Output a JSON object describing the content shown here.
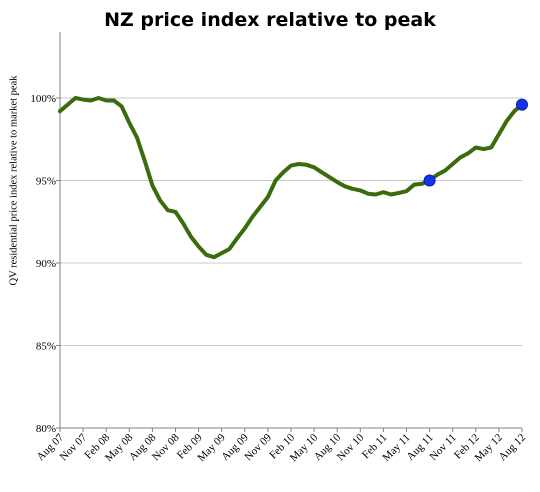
{
  "chart_data": {
    "type": "line",
    "title": "NZ price index relative to peak",
    "ylabel": "QV residential price index relative to market peak",
    "xlabel": "",
    "ylim": [
      80,
      104
    ],
    "yticks": [
      {
        "value": 80,
        "label": "80%"
      },
      {
        "value": 85,
        "label": "85%"
      },
      {
        "value": 90,
        "label": "90%"
      },
      {
        "value": 95,
        "label": "95%"
      },
      {
        "value": 100,
        "label": "100%"
      }
    ],
    "x_tick_labels": [
      "Aug 07",
      "Nov 07",
      "Feb 08",
      "May 08",
      "Aug 08",
      "Nov 08",
      "Feb 09",
      "May 09",
      "Aug 09",
      "Nov 09",
      "Feb 10",
      "May 10",
      "Aug 10",
      "Nov 10",
      "Feb 11",
      "May 11",
      "Aug 11",
      "Nov 11",
      "Feb 12",
      "May 12",
      "Aug 12"
    ],
    "grid": true,
    "legend": "none",
    "colors": {
      "line": "#3a6b0c",
      "marker": "#1432f0",
      "grid": "#c8c8c8"
    },
    "series": [
      {
        "values": [
          99.2,
          99.6,
          100.0,
          99.9,
          99.85,
          100.0,
          99.85,
          99.85,
          99.5,
          98.5,
          97.6,
          96.2,
          94.7,
          93.8,
          93.2,
          93.1,
          92.4,
          91.6,
          91.0,
          90.5,
          90.35,
          90.6,
          90.85,
          91.5,
          92.1,
          92.8,
          93.4,
          94.0,
          95.0,
          95.5,
          95.9,
          96.0,
          95.95,
          95.8,
          95.5,
          95.2,
          94.9,
          94.65,
          94.5,
          94.4,
          94.2,
          94.15,
          94.3,
          94.15,
          94.25,
          94.35,
          94.75,
          94.8,
          95.0,
          95.35,
          95.6,
          96.0,
          96.4,
          96.65,
          97.0,
          96.9,
          97.0,
          97.8,
          98.6,
          99.2,
          99.6
        ]
      }
    ],
    "highlighted_points": [
      {
        "x_index": 48,
        "value": 95.0
      },
      {
        "x_index": 60,
        "value": 99.6
      }
    ]
  }
}
